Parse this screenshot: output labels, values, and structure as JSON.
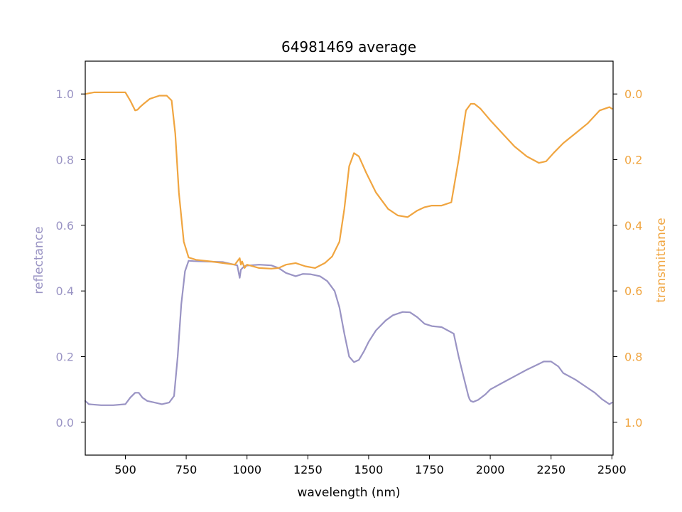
{
  "chart_data": {
    "type": "line",
    "title": "64981469 average",
    "xlabel": "wavelength (nm)",
    "ylabel_left": "reflectance",
    "ylabel_right": "transmittance",
    "xlim": [
      335,
      2505
    ],
    "ylim_left": [
      -0.1,
      1.1
    ],
    "ylim_right": [
      1.1,
      -0.1
    ],
    "right_axis_inverted": true,
    "grid": false,
    "x_ticks": [
      500,
      750,
      1000,
      1250,
      1500,
      1750,
      2000,
      2250,
      2500
    ],
    "left_ticks": [
      0.0,
      0.2,
      0.4,
      0.6,
      0.8,
      1.0
    ],
    "right_ticks": [
      0.0,
      0.2,
      0.4,
      0.6,
      0.8,
      1.0
    ],
    "colors": {
      "reflectance": "#9a94c4",
      "transmittance": "#f0a540",
      "axes": "#000000"
    },
    "series": [
      {
        "name": "reflectance",
        "axis": "left",
        "color": "#9a94c4",
        "x": [
          335,
          350,
          400,
          450,
          500,
          520,
          540,
          555,
          570,
          590,
          620,
          650,
          680,
          700,
          715,
          730,
          745,
          760,
          780,
          820,
          900,
          960,
          970,
          975,
          985,
          995,
          1010,
          1050,
          1100,
          1130,
          1160,
          1200,
          1230,
          1260,
          1300,
          1330,
          1360,
          1380,
          1400,
          1420,
          1440,
          1460,
          1480,
          1500,
          1530,
          1570,
          1600,
          1640,
          1670,
          1700,
          1730,
          1760,
          1800,
          1850,
          1870,
          1890,
          1905,
          1910,
          1915,
          1920,
          1930,
          1950,
          1980,
          2000,
          2050,
          2100,
          2150,
          2200,
          2220,
          2250,
          2280,
          2300,
          2350,
          2400,
          2430,
          2460,
          2490,
          2500
        ],
        "y": [
          0.065,
          0.055,
          0.052,
          0.052,
          0.055,
          0.075,
          0.09,
          0.09,
          0.075,
          0.065,
          0.06,
          0.055,
          0.06,
          0.08,
          0.2,
          0.36,
          0.46,
          0.492,
          0.491,
          0.49,
          0.488,
          0.478,
          0.44,
          0.465,
          0.473,
          0.477,
          0.478,
          0.48,
          0.478,
          0.47,
          0.455,
          0.445,
          0.452,
          0.451,
          0.445,
          0.43,
          0.4,
          0.35,
          0.27,
          0.2,
          0.183,
          0.19,
          0.215,
          0.245,
          0.28,
          0.31,
          0.326,
          0.336,
          0.335,
          0.32,
          0.3,
          0.293,
          0.29,
          0.27,
          0.2,
          0.14,
          0.095,
          0.08,
          0.07,
          0.065,
          0.062,
          0.068,
          0.085,
          0.1,
          0.12,
          0.14,
          0.16,
          0.178,
          0.185,
          0.185,
          0.17,
          0.15,
          0.13,
          0.105,
          0.09,
          0.07,
          0.055,
          0.06
        ]
      },
      {
        "name": "transmittance",
        "axis": "right",
        "color": "#f0a540",
        "x": [
          335,
          370,
          400,
          450,
          500,
          520,
          540,
          550,
          560,
          575,
          600,
          640,
          670,
          690,
          705,
          720,
          740,
          760,
          790,
          850,
          900,
          950,
          970,
          975,
          980,
          990,
          1000,
          1050,
          1100,
          1130,
          1160,
          1200,
          1240,
          1280,
          1320,
          1350,
          1380,
          1400,
          1420,
          1440,
          1460,
          1490,
          1530,
          1580,
          1620,
          1660,
          1700,
          1730,
          1760,
          1800,
          1840,
          1870,
          1890,
          1900,
          1910,
          1920,
          1935,
          1960,
          2000,
          2050,
          2100,
          2150,
          2200,
          2230,
          2260,
          2300,
          2350,
          2400,
          2450,
          2490,
          2500
        ],
        "y": [
          0.0,
          -0.005,
          -0.005,
          -0.005,
          -0.005,
          0.02,
          0.05,
          0.048,
          0.04,
          0.03,
          0.015,
          0.005,
          0.005,
          0.02,
          0.12,
          0.3,
          0.45,
          0.498,
          0.505,
          0.51,
          0.515,
          0.52,
          0.5,
          0.52,
          0.51,
          0.53,
          0.52,
          0.53,
          0.532,
          0.53,
          0.52,
          0.515,
          0.525,
          0.53,
          0.515,
          0.495,
          0.45,
          0.35,
          0.22,
          0.18,
          0.19,
          0.24,
          0.3,
          0.35,
          0.37,
          0.375,
          0.355,
          0.345,
          0.34,
          0.34,
          0.33,
          0.2,
          0.1,
          0.05,
          0.04,
          0.03,
          0.03,
          0.045,
          0.08,
          0.12,
          0.16,
          0.19,
          0.21,
          0.205,
          0.18,
          0.15,
          0.12,
          0.09,
          0.05,
          0.04,
          0.045
        ]
      }
    ]
  }
}
